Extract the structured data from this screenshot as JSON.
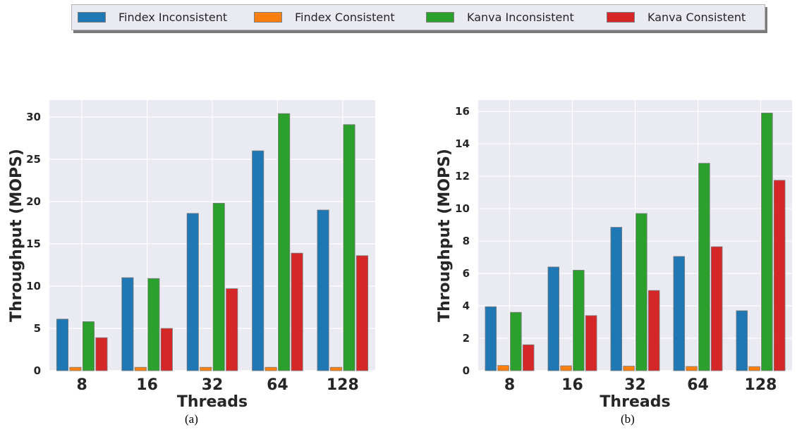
{
  "legend": {
    "items": [
      {
        "label": "Findex Inconsistent",
        "color": "#1f77b4"
      },
      {
        "label": "Findex Consistent",
        "color": "#ff7f0e"
      },
      {
        "label": "Kanva Inconsistent",
        "color": "#2ca02c"
      },
      {
        "label": "Kanva Consistent",
        "color": "#d62728"
      }
    ]
  },
  "chart_data": [
    {
      "type": "bar",
      "panel_label": "(a)",
      "xlabel": "Threads",
      "ylabel": "Throughput (MOPS)",
      "categories": [
        "8",
        "16",
        "32",
        "64",
        "128"
      ],
      "ylim": [
        0,
        32
      ],
      "yticks": [
        0,
        5,
        10,
        15,
        20,
        25,
        30
      ],
      "grid": true,
      "series": [
        {
          "name": "Findex Inconsistent",
          "color": "#1f77b4",
          "values": [
            6.1,
            11.0,
            18.6,
            26.0,
            19.0
          ]
        },
        {
          "name": "Findex Consistent",
          "color": "#ff7f0e",
          "values": [
            0.4,
            0.4,
            0.4,
            0.4,
            0.4
          ]
        },
        {
          "name": "Kanva Inconsistent",
          "color": "#2ca02c",
          "values": [
            5.8,
            10.9,
            19.8,
            30.4,
            29.1
          ]
        },
        {
          "name": "Kanva Consistent",
          "color": "#d62728",
          "values": [
            3.9,
            5.0,
            9.7,
            13.9,
            13.6
          ]
        }
      ]
    },
    {
      "type": "bar",
      "panel_label": "(b)",
      "xlabel": "Threads",
      "ylabel": "Throughput (MOPS)",
      "categories": [
        "8",
        "16",
        "32",
        "64",
        "128"
      ],
      "ylim": [
        0,
        16.7
      ],
      "yticks": [
        0,
        2,
        4,
        6,
        8,
        10,
        12,
        14,
        16
      ],
      "grid": true,
      "series": [
        {
          "name": "Findex Inconsistent",
          "color": "#1f77b4",
          "values": [
            3.95,
            6.4,
            8.85,
            7.05,
            3.7
          ]
        },
        {
          "name": "Findex Consistent",
          "color": "#ff7f0e",
          "values": [
            0.32,
            0.3,
            0.28,
            0.26,
            0.25
          ]
        },
        {
          "name": "Kanva Inconsistent",
          "color": "#2ca02c",
          "values": [
            3.6,
            6.2,
            9.7,
            12.8,
            15.9
          ]
        },
        {
          "name": "Kanva Consistent",
          "color": "#d62728",
          "values": [
            1.6,
            3.4,
            4.95,
            7.65,
            11.75
          ]
        }
      ]
    }
  ]
}
